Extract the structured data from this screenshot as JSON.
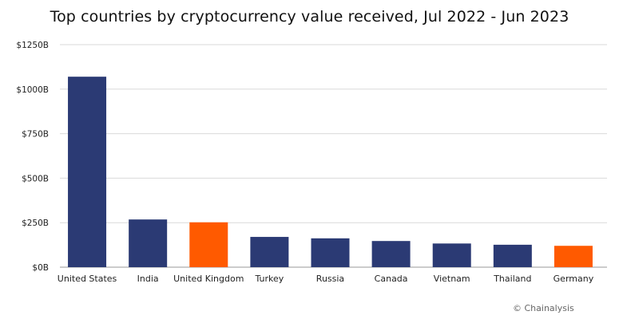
{
  "chart_data": {
    "type": "bar",
    "title": "Top countries by cryptocurrency value received, Jul 2022 - Jun 2023",
    "xlabel": "",
    "ylabel": "",
    "ylim": [
      0,
      1250
    ],
    "yticks": [
      0,
      250,
      500,
      750,
      1000,
      1250
    ],
    "ytick_labels": [
      "$0B",
      "$250B",
      "$500B",
      "$750B",
      "$1000B",
      "$1250B"
    ],
    "grid": true,
    "legend": "none",
    "categories": [
      "United States",
      "India",
      "United Kingdom",
      "Turkey",
      "Russia",
      "Canada",
      "Vietnam",
      "Thailand",
      "Germany"
    ],
    "values": [
      1070,
      268,
      252,
      170,
      162,
      147,
      133,
      126,
      120
    ],
    "bar_colors": [
      "#2b3a74",
      "#2b3a74",
      "#ff5a00",
      "#2b3a74",
      "#2b3a74",
      "#2b3a74",
      "#2b3a74",
      "#2b3a74",
      "#ff5a00"
    ]
  },
  "credit": "© Chainalysis"
}
